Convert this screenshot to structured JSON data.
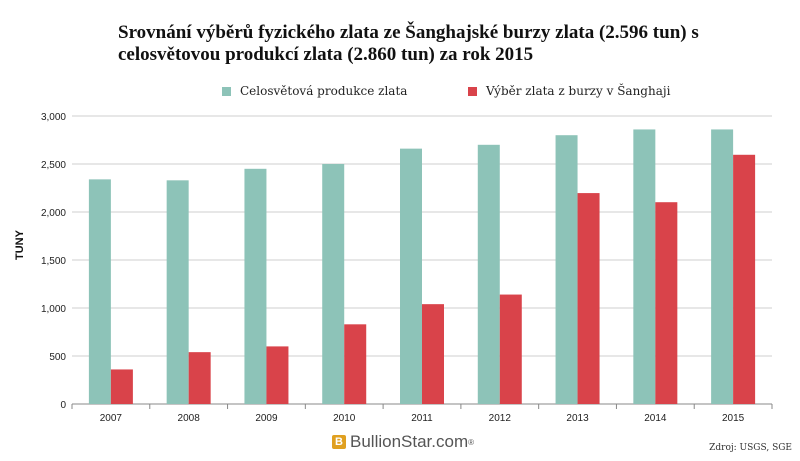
{
  "chart_data": {
    "type": "bar",
    "title": "Srovnání výběrů fyzického zlata ze Šanghajské burzy zlata (2.596 tun) s celosvětovou produkcí zlata (2.860 tun) za rok 2015",
    "ylabel": "TUNY",
    "xlabel": "",
    "ylim": [
      0,
      3000
    ],
    "yticks": [
      "0",
      "500",
      "1,000",
      "1,500",
      "2,000",
      "2,500",
      "3,000"
    ],
    "ytick_values": [
      0,
      500,
      1000,
      1500,
      2000,
      2500,
      3000
    ],
    "categories": [
      "2007",
      "2008",
      "2009",
      "2010",
      "2011",
      "2012",
      "2013",
      "2014",
      "2015"
    ],
    "series": [
      {
        "name": "Celosvětová produkce zlata",
        "color": "#8dc3b8",
        "values": [
          2340,
          2330,
          2450,
          2500,
          2660,
          2700,
          2800,
          2860,
          2860
        ]
      },
      {
        "name": "Výběr zlata z burzy v Šanghaji",
        "color": "#d9434a",
        "values": [
          360,
          540,
          600,
          830,
          1040,
          1140,
          2197,
          2102,
          2596
        ]
      }
    ],
    "grid": true,
    "legend_position": "top"
  },
  "logo": {
    "text": "BullionStar.com",
    "mark": "B",
    "reg": "®"
  },
  "source": "Zdroj: USGS, SGE"
}
